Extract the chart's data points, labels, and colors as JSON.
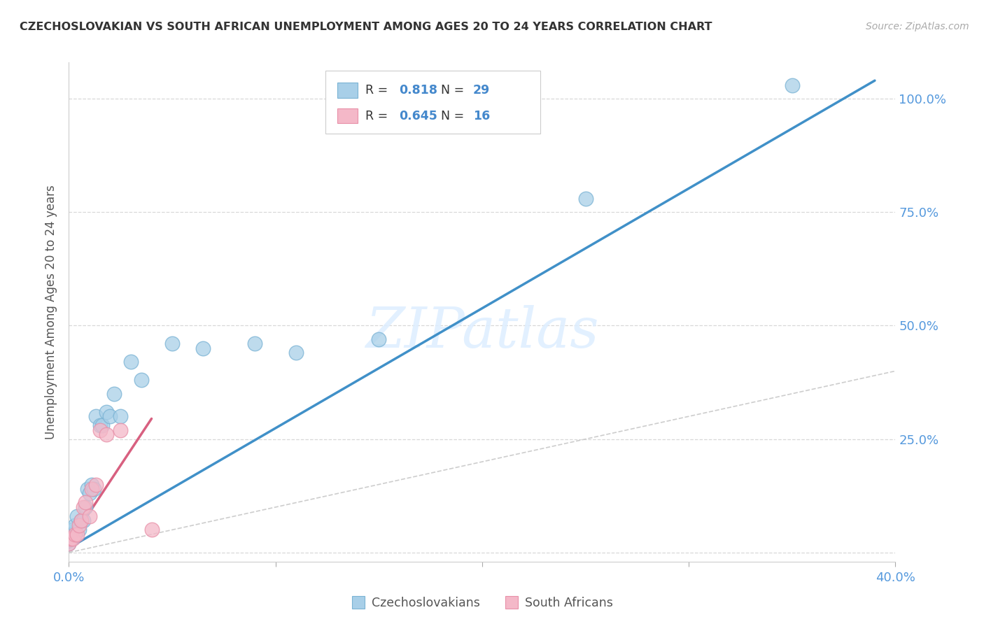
{
  "title": "CZECHOSLOVAKIAN VS SOUTH AFRICAN UNEMPLOYMENT AMONG AGES 20 TO 24 YEARS CORRELATION CHART",
  "source": "Source: ZipAtlas.com",
  "ylabel": "Unemployment Among Ages 20 to 24 years",
  "watermark": "ZIPatlas",
  "czech_R": "0.818",
  "czech_N": "29",
  "sa_R": "0.645",
  "sa_N": "16",
  "xlim": [
    0.0,
    0.4
  ],
  "ylim": [
    -0.02,
    1.08
  ],
  "xticks": [
    0.0,
    0.1,
    0.2,
    0.3,
    0.4
  ],
  "yticks": [
    0.0,
    0.25,
    0.5,
    0.75,
    1.0
  ],
  "xticklabels": [
    "0.0%",
    "",
    "",
    "",
    "40.0%"
  ],
  "yticklabels_right": [
    "",
    "25.0%",
    "50.0%",
    "75.0%",
    "100.0%"
  ],
  "czech_color": "#a8cfe8",
  "czech_edge_color": "#7ab3d4",
  "sa_color": "#f4b8c8",
  "sa_edge_color": "#e890a8",
  "czech_line_color": "#4090c8",
  "sa_line_color": "#d86080",
  "diag_line_color": "#c8c8c8",
  "background_color": "#ffffff",
  "grid_color": "#d8d8d8",
  "tick_color": "#5599dd",
  "czech_points_x": [
    0.0,
    0.001,
    0.002,
    0.003,
    0.004,
    0.005,
    0.006,
    0.007,
    0.008,
    0.009,
    0.01,
    0.011,
    0.012,
    0.013,
    0.015,
    0.016,
    0.018,
    0.02,
    0.022,
    0.025,
    0.03,
    0.035,
    0.05,
    0.065,
    0.09,
    0.11,
    0.15,
    0.25,
    0.35
  ],
  "czech_points_y": [
    0.02,
    0.04,
    0.05,
    0.06,
    0.08,
    0.05,
    0.07,
    0.07,
    0.1,
    0.14,
    0.13,
    0.15,
    0.14,
    0.3,
    0.28,
    0.28,
    0.31,
    0.3,
    0.35,
    0.3,
    0.42,
    0.38,
    0.46,
    0.45,
    0.46,
    0.44,
    0.47,
    0.78,
    1.03
  ],
  "sa_points_x": [
    0.0,
    0.001,
    0.002,
    0.003,
    0.004,
    0.005,
    0.006,
    0.007,
    0.008,
    0.01,
    0.011,
    0.013,
    0.015,
    0.018,
    0.025,
    0.04
  ],
  "sa_points_y": [
    0.02,
    0.03,
    0.03,
    0.04,
    0.04,
    0.06,
    0.07,
    0.1,
    0.11,
    0.08,
    0.14,
    0.15,
    0.27,
    0.26,
    0.27,
    0.05
  ],
  "czech_line_x": [
    0.0,
    0.39
  ],
  "czech_line_y": [
    0.01,
    1.04
  ],
  "sa_line_x": [
    0.0,
    0.04
  ],
  "sa_line_y": [
    0.02,
    0.295
  ],
  "diag_line_x": [
    0.0,
    0.4
  ],
  "diag_line_y": [
    0.0,
    0.4
  ]
}
